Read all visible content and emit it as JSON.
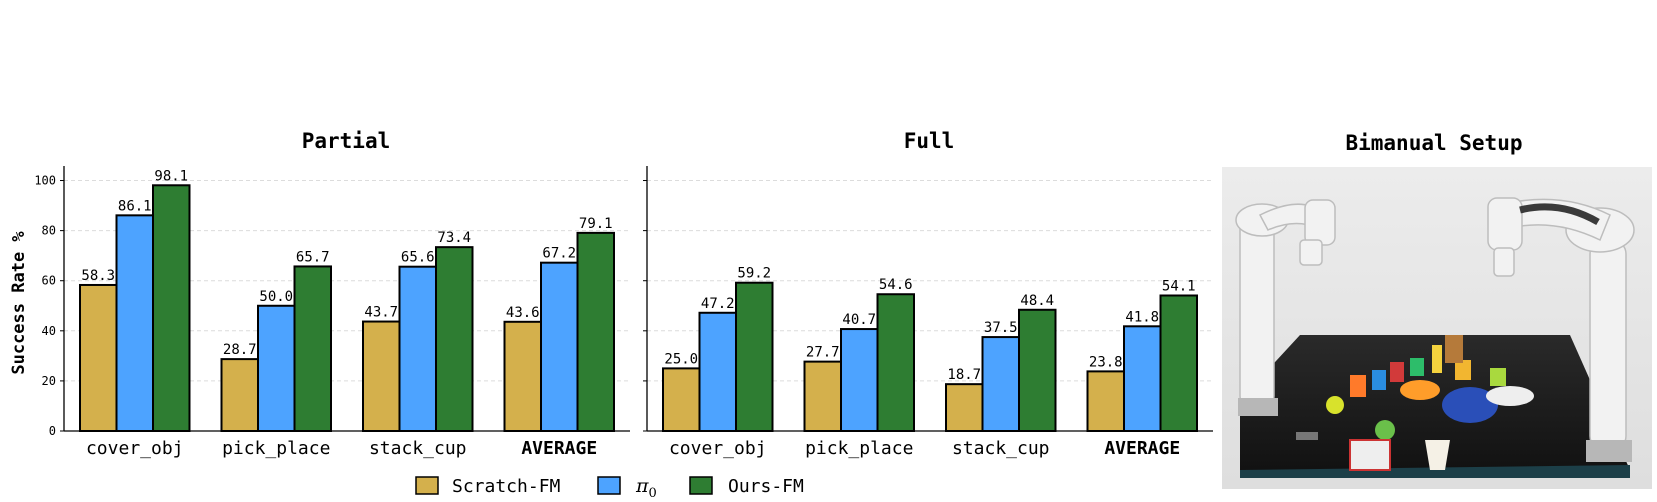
{
  "chart_data": [
    {
      "type": "bar",
      "title": "Partial",
      "ylabel": "Success Rate %",
      "ylim": [
        0,
        105
      ],
      "yticks": [
        0,
        20,
        40,
        60,
        80,
        100
      ],
      "grid": true,
      "categories": [
        "cover_obj",
        "pick_place",
        "stack_cup",
        "AVERAGE"
      ],
      "series": [
        {
          "name": "Scratch-FM",
          "values": [
            58.3,
            28.7,
            43.7,
            43.6
          ]
        },
        {
          "name": "π0",
          "values": [
            86.1,
            50.0,
            65.6,
            67.2
          ]
        },
        {
          "name": "Ours-FM",
          "values": [
            98.1,
            65.7,
            73.4,
            79.1
          ]
        }
      ]
    },
    {
      "type": "bar",
      "title": "Full",
      "ylabel": "",
      "ylim": [
        0,
        105
      ],
      "yticks": [
        0,
        20,
        40,
        60,
        80,
        100
      ],
      "grid": true,
      "categories": [
        "cover_obj",
        "pick_place",
        "stack_cup",
        "AVERAGE"
      ],
      "series": [
        {
          "name": "Scratch-FM",
          "values": [
            25.0,
            27.7,
            18.7,
            23.8
          ]
        },
        {
          "name": "π0",
          "values": [
            47.2,
            40.7,
            37.5,
            41.8
          ]
        },
        {
          "name": "Ours-FM",
          "values": [
            59.2,
            54.6,
            48.4,
            54.1
          ]
        }
      ]
    }
  ],
  "legend": {
    "position": "bottom-center",
    "items": [
      {
        "label": "Scratch-FM",
        "color": "#d4b04c"
      },
      {
        "label": "π",
        "subscript": "0",
        "color": "#4da3ff"
      },
      {
        "label": "Ours-FM",
        "color": "#2e7d32"
      }
    ]
  },
  "colors": [
    "#d4b04c",
    "#4da3ff",
    "#2e7d32"
  ],
  "photo_panel": {
    "title": "Bimanual Setup"
  }
}
